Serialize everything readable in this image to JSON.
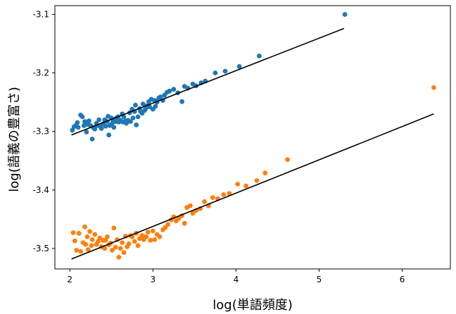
{
  "chart_data": {
    "type": "scatter",
    "xlabel": "log(単語頻度)",
    "ylabel": "log(語義の豊富さ)",
    "xlim": [
      1.82,
      6.58
    ],
    "ylim": [
      -3.535,
      -3.085
    ],
    "xticks": [
      2,
      3,
      4,
      5,
      6
    ],
    "xtick_labels": [
      "2",
      "3",
      "4",
      "5",
      "6"
    ],
    "yticks": [
      -3.1,
      -3.2,
      -3.3,
      -3.4,
      -3.5
    ],
    "ytick_labels": [
      "-3.1",
      "-3.2",
      "-3.3",
      "-3.4",
      "-3.5"
    ],
    "grid": false,
    "series": [
      {
        "color": "#1f77b4",
        "points": [
          [
            2.03,
            -3.298
          ],
          [
            2.05,
            -3.292
          ],
          [
            2.07,
            -3.29
          ],
          [
            2.09,
            -3.285
          ],
          [
            2.1,
            -3.293
          ],
          [
            2.13,
            -3.272
          ],
          [
            2.15,
            -3.275
          ],
          [
            2.17,
            -3.29
          ],
          [
            2.18,
            -3.283
          ],
          [
            2.2,
            -3.301
          ],
          [
            2.22,
            -3.288
          ],
          [
            2.23,
            -3.282
          ],
          [
            2.25,
            -3.29
          ],
          [
            2.27,
            -3.313
          ],
          [
            2.28,
            -3.293
          ],
          [
            2.3,
            -3.296
          ],
          [
            2.32,
            -3.286
          ],
          [
            2.33,
            -3.29
          ],
          [
            2.35,
            -3.28
          ],
          [
            2.37,
            -3.292
          ],
          [
            2.38,
            -3.295
          ],
          [
            2.4,
            -3.287
          ],
          [
            2.42,
            -3.28
          ],
          [
            2.43,
            -3.291
          ],
          [
            2.45,
            -3.283
          ],
          [
            2.46,
            -3.274
          ],
          [
            2.47,
            -3.306
          ],
          [
            2.48,
            -3.29
          ],
          [
            2.5,
            -3.277
          ],
          [
            2.51,
            -3.286
          ],
          [
            2.52,
            -3.28
          ],
          [
            2.53,
            -3.293
          ],
          [
            2.55,
            -3.283
          ],
          [
            2.56,
            -3.277
          ],
          [
            2.58,
            -3.275
          ],
          [
            2.59,
            -3.284
          ],
          [
            2.61,
            -3.281
          ],
          [
            2.63,
            -3.27
          ],
          [
            2.64,
            -3.284
          ],
          [
            2.65,
            -3.275
          ],
          [
            2.67,
            -3.282
          ],
          [
            2.68,
            -3.286
          ],
          [
            2.7,
            -3.281
          ],
          [
            2.72,
            -3.268
          ],
          [
            2.73,
            -3.283
          ],
          [
            2.75,
            -3.262
          ],
          [
            2.76,
            -3.277
          ],
          [
            2.78,
            -3.266
          ],
          [
            2.79,
            -3.255
          ],
          [
            2.8,
            -3.289
          ],
          [
            2.82,
            -3.275
          ],
          [
            2.84,
            -3.261
          ],
          [
            2.85,
            -3.266
          ],
          [
            2.87,
            -3.269
          ],
          [
            2.88,
            -3.253
          ],
          [
            2.9,
            -3.264
          ],
          [
            2.91,
            -3.262
          ],
          [
            2.93,
            -3.256
          ],
          [
            2.95,
            -3.249
          ],
          [
            2.96,
            -3.258
          ],
          [
            2.98,
            -3.245
          ],
          [
            3.0,
            -3.262
          ],
          [
            3.02,
            -3.247
          ],
          [
            3.03,
            -3.257
          ],
          [
            3.05,
            -3.25
          ],
          [
            3.07,
            -3.243
          ],
          [
            3.09,
            -3.241
          ],
          [
            3.12,
            -3.247
          ],
          [
            3.14,
            -3.238
          ],
          [
            3.17,
            -3.233
          ],
          [
            3.2,
            -3.231
          ],
          [
            3.25,
            -3.228
          ],
          [
            3.3,
            -3.234
          ],
          [
            3.35,
            -3.249
          ],
          [
            3.38,
            -3.223
          ],
          [
            3.42,
            -3.226
          ],
          [
            3.48,
            -3.219
          ],
          [
            3.52,
            -3.222
          ],
          [
            3.58,
            -3.217
          ],
          [
            3.63,
            -3.214
          ],
          [
            3.75,
            -3.2
          ],
          [
            3.87,
            -3.197
          ],
          [
            4.04,
            -3.189
          ],
          [
            4.28,
            -3.171
          ],
          [
            5.31,
            -3.1
          ]
        ],
        "fit": [
          [
            2.02,
            -3.306
          ],
          [
            5.3,
            -3.124
          ]
        ]
      },
      {
        "color": "#ff7f0e",
        "points": [
          [
            2.04,
            -3.473
          ],
          [
            2.06,
            -3.487
          ],
          [
            2.08,
            -3.503
          ],
          [
            2.11,
            -3.474
          ],
          [
            2.13,
            -3.505
          ],
          [
            2.16,
            -3.49
          ],
          [
            2.18,
            -3.463
          ],
          [
            2.19,
            -3.493
          ],
          [
            2.21,
            -3.48
          ],
          [
            2.22,
            -3.502
          ],
          [
            2.24,
            -3.471
          ],
          [
            2.26,
            -3.495
          ],
          [
            2.27,
            -3.485
          ],
          [
            2.3,
            -3.476
          ],
          [
            2.32,
            -3.493
          ],
          [
            2.34,
            -3.488
          ],
          [
            2.36,
            -3.482
          ],
          [
            2.38,
            -3.497
          ],
          [
            2.4,
            -3.486
          ],
          [
            2.42,
            -3.5
          ],
          [
            2.43,
            -3.486
          ],
          [
            2.45,
            -3.48
          ],
          [
            2.47,
            -3.494
          ],
          [
            2.49,
            -3.491
          ],
          [
            2.51,
            -3.503
          ],
          [
            2.53,
            -3.465
          ],
          [
            2.55,
            -3.498
          ],
          [
            2.57,
            -3.485
          ],
          [
            2.59,
            -3.515
          ],
          [
            2.61,
            -3.5
          ],
          [
            2.63,
            -3.49
          ],
          [
            2.65,
            -3.507
          ],
          [
            2.67,
            -3.479
          ],
          [
            2.69,
            -3.497
          ],
          [
            2.71,
            -3.492
          ],
          [
            2.73,
            -3.478
          ],
          [
            2.75,
            -3.48
          ],
          [
            2.78,
            -3.488
          ],
          [
            2.8,
            -3.474
          ],
          [
            2.82,
            -3.495
          ],
          [
            2.84,
            -3.483
          ],
          [
            2.87,
            -3.478
          ],
          [
            2.89,
            -3.485
          ],
          [
            2.92,
            -3.48
          ],
          [
            2.94,
            -3.472
          ],
          [
            2.97,
            -3.486
          ],
          [
            3.0,
            -3.47
          ],
          [
            3.02,
            -3.485
          ],
          [
            3.05,
            -3.476
          ],
          [
            3.08,
            -3.48
          ],
          [
            3.12,
            -3.468
          ],
          [
            3.15,
            -3.464
          ],
          [
            3.18,
            -3.459
          ],
          [
            3.22,
            -3.451
          ],
          [
            3.25,
            -3.446
          ],
          [
            3.28,
            -3.453
          ],
          [
            3.31,
            -3.449
          ],
          [
            3.35,
            -3.444
          ],
          [
            3.38,
            -3.457
          ],
          [
            3.41,
            -3.43
          ],
          [
            3.45,
            -3.427
          ],
          [
            3.48,
            -3.44
          ],
          [
            3.52,
            -3.435
          ],
          [
            3.57,
            -3.432
          ],
          [
            3.62,
            -3.42
          ],
          [
            3.67,
            -3.427
          ],
          [
            3.72,
            -3.413
          ],
          [
            3.78,
            -3.415
          ],
          [
            3.85,
            -3.408
          ],
          [
            3.92,
            -3.406
          ],
          [
            4.02,
            -3.39
          ],
          [
            4.12,
            -3.393
          ],
          [
            4.25,
            -3.384
          ],
          [
            4.35,
            -3.371
          ],
          [
            4.62,
            -3.348
          ],
          [
            6.38,
            -3.225
          ]
        ],
        "fit": [
          [
            2.02,
            -3.518
          ],
          [
            6.38,
            -3.27
          ]
        ]
      }
    ]
  }
}
